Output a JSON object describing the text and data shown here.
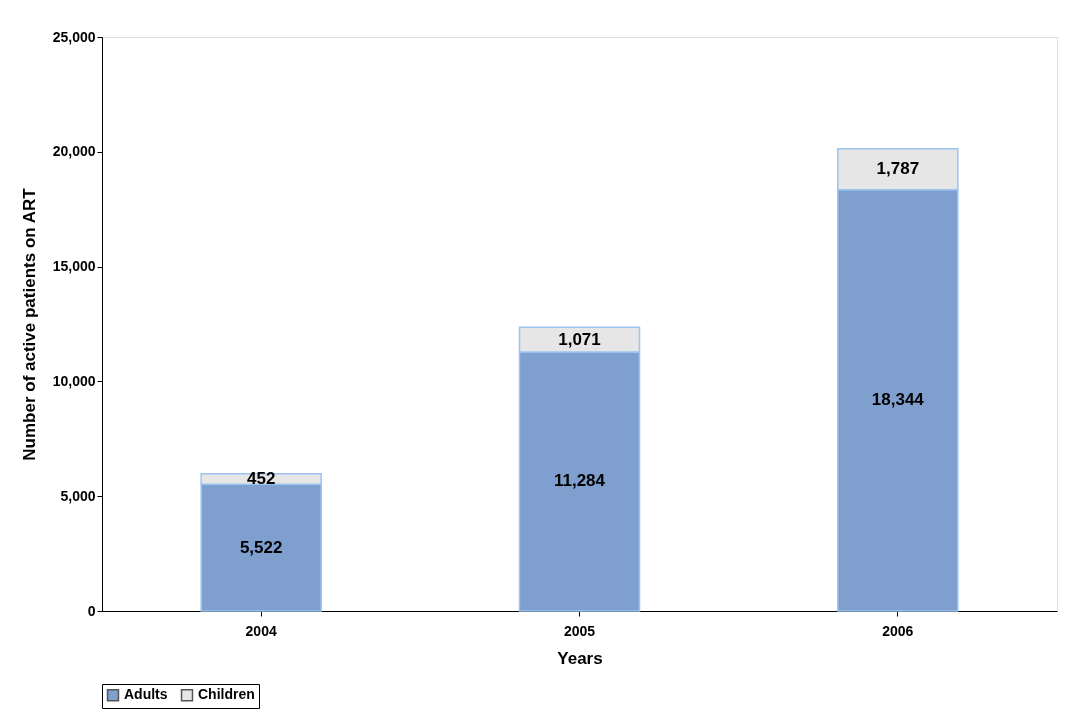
{
  "chart_data": {
    "type": "bar",
    "stacked": true,
    "xlabel": "Years",
    "ylabel": "Number of active patients on ART",
    "categories": [
      "2004",
      "2005",
      "2006"
    ],
    "series": [
      {
        "name": "Adults",
        "color": "#7f9fcf",
        "values": [
          5522,
          11284,
          18344
        ],
        "value_labels": [
          "5,522",
          "11,284",
          "18,344"
        ]
      },
      {
        "name": "Children",
        "color": "#e6e6e6",
        "values": [
          452,
          1071,
          1787
        ],
        "value_labels": [
          "452",
          "1,071",
          "1,787"
        ]
      }
    ],
    "ylim": [
      0,
      25000
    ],
    "yticks": [
      {
        "value": 0,
        "label": "0"
      },
      {
        "value": 5000,
        "label": "5,000"
      },
      {
        "value": 10000,
        "label": "10,000"
      },
      {
        "value": 15000,
        "label": "15,000"
      },
      {
        "value": 20000,
        "label": "20,000"
      },
      {
        "value": 25000,
        "label": "25,000"
      }
    ],
    "grid": false,
    "legend": "bottom"
  }
}
